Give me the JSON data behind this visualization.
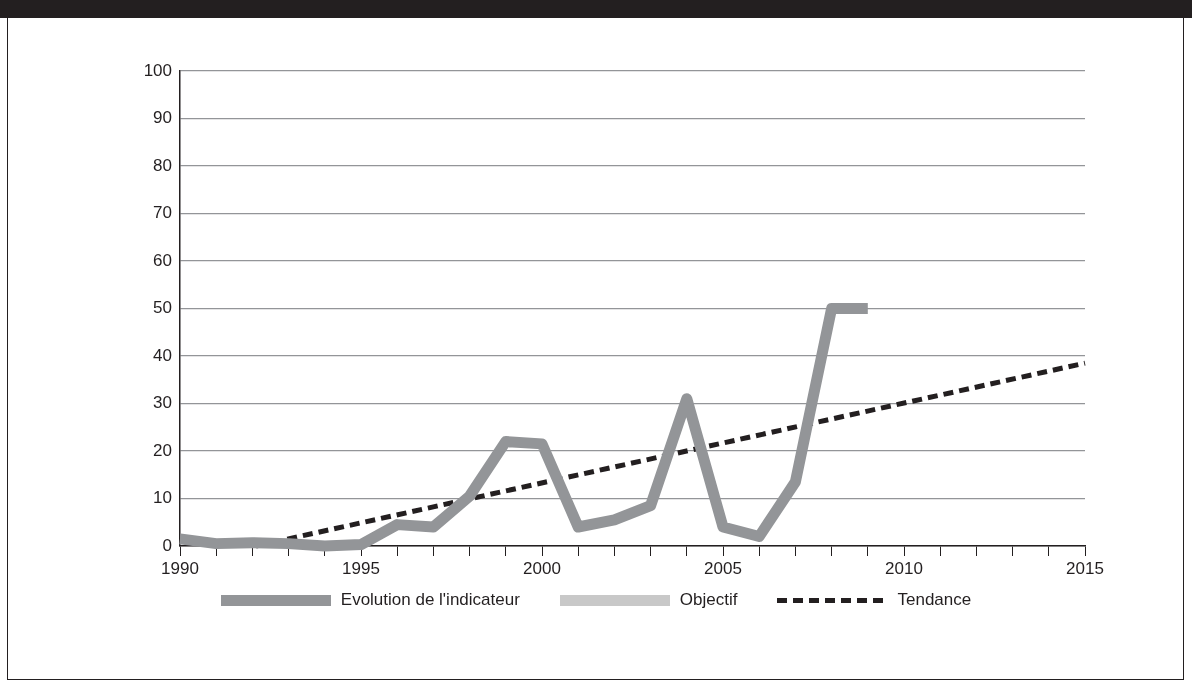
{
  "chart_data": {
    "type": "line",
    "x": [
      1990,
      1991,
      1992,
      1993,
      1994,
      1995,
      1996,
      1997,
      1998,
      1999,
      2000,
      2001,
      2002,
      2003,
      2004,
      2005,
      2006,
      2007,
      2008,
      2009
    ],
    "series": [
      {
        "name": "Evolution de l'indicateur",
        "color": "#939598",
        "values": [
          1.5,
          0.5,
          0.7,
          0.5,
          0,
          0.3,
          4.5,
          4,
          10.5,
          22,
          21.5,
          4,
          5.5,
          8.5,
          31,
          4,
          2,
          13.5,
          50,
          50
        ]
      },
      {
        "name": "Objectif",
        "values": [
          null,
          null,
          null,
          null,
          null,
          null,
          null,
          null,
          null,
          null,
          null,
          null,
          null,
          null,
          null,
          null,
          null,
          null,
          null,
          null
        ]
      },
      {
        "name": "Tendance",
        "color": "#231f20",
        "line_style": "dashed",
        "x": [
          1992.1,
          2015
        ],
        "values": [
          0,
          38.5
        ]
      }
    ],
    "xlim": [
      1990,
      2015
    ],
    "xticks": [
      1990,
      {
        "value": 1991,
        "label": null
      },
      {
        "value": 1992,
        "label": null
      },
      {
        "value": 1993,
        "label": null
      },
      {
        "value": 1994,
        "label": null
      },
      1995,
      {
        "value": 1996,
        "label": null
      },
      {
        "value": 1997,
        "label": null
      },
      {
        "value": 1998,
        "label": null
      },
      {
        "value": 1999,
        "label": null
      },
      2000,
      {
        "value": 2001,
        "label": null
      },
      {
        "value": 2002,
        "label": null
      },
      {
        "value": 2003,
        "label": null
      },
      {
        "value": 2004,
        "label": null
      },
      2005,
      {
        "value": 2006,
        "label": null
      },
      {
        "value": 2007,
        "label": null
      },
      {
        "value": 2008,
        "label": null
      },
      {
        "value": 2009,
        "label": null
      },
      2010,
      {
        "value": 2011,
        "label": null
      },
      {
        "value": 2012,
        "label": null
      },
      {
        "value": 2013,
        "label": null
      },
      {
        "value": 2014,
        "label": null
      },
      2015
    ],
    "ylim": [
      0,
      100
    ],
    "yticks": [
      0,
      10,
      20,
      30,
      40,
      50,
      60,
      70,
      80,
      90,
      100
    ],
    "grid": "y",
    "legend": "bottom",
    "marker": "none",
    "line_style": "solid"
  }
}
